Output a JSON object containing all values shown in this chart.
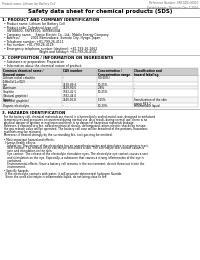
{
  "title": "Safety data sheet for chemical products (SDS)",
  "header_left": "Product name: Lithium Ion Battery Cell",
  "header_right": "Reference Number: SRK-SDS-00010\nEstablishment / Revision: Dec.7.2016",
  "section1_title": "1. PRODUCT AND COMPANY IDENTIFICATION",
  "section1_lines": [
    "  • Product name: Lithium Ion Battery Cell",
    "  • Product code: Cylindrical-type cell",
    "     SNY88800, SNY88500, SNY88500A",
    "  • Company name:    Sanyo Electric Co., Ltd., Mobile Energy Company",
    "  • Address:           2001 Kamizaibara, Sumoto City, Hyogo, Japan",
    "  • Telephone number: +81-799-26-4111",
    "  • Fax number: +81-799-26-4129",
    "  • Emergency telephone number (daytime): +81-799-26-2662",
    "                                     (Night and holiday): +81-799-26-4101"
  ],
  "section2_title": "2. COMPOSITION / INFORMATION ON INGREDIENTS",
  "section2_intro": "  • Substance or preparation: Preparation",
  "section2_sub": "  • Information about the chemical nature of product:",
  "table_headers": [
    "Common chemical name /\nGeneral name",
    "CAS number",
    "Concentration /\nConcentration range",
    "Classification and\nhazard labeling"
  ],
  "table_rows": [
    [
      "Lithium nickel cobaltite\n(LiNixCo(1-x)O2)",
      "-",
      "(30-60%)",
      "-"
    ],
    [
      "Iron",
      "7439-89-6",
      "10-25%",
      "-"
    ],
    [
      "Aluminum",
      "7429-90-5",
      "2-8%",
      "-"
    ],
    [
      "Graphite\n(Natural graphite)\n(Artificial graphite)",
      "7782-42-5\n7782-44-0",
      "10-25%",
      "-"
    ],
    [
      "Copper",
      "7440-50-8",
      "5-15%",
      "Sensitization of the skin\ngroup R43.2"
    ],
    [
      "Organic electrolyte",
      "-",
      "10-20%",
      "Inflammable liquid"
    ]
  ],
  "section3_title": "3. HAZARDS IDENTIFICATION",
  "section3_lines": [
    "  For the battery cell, chemical materials are stored in a hermetically sealed metal case, designed to withstand",
    "  temperatures and pressures encountered during normal use. As a result, during normal use, there is no",
    "  physical danger of ignition or explosion and there is no danger of hazardous materials leakage.",
    "  However, if exposed to a fire, added mechanical shocks, decomposed, arises electric shocks by misuse,",
    "  the gas release valve will be operated. The battery cell case will be breached of the portions, hazardous",
    "  materials may be released.",
    "  Moreover, if heated strongly by the surrounding fire, soot gas may be emitted.",
    "",
    "  • Most important hazard and effects:",
    "    Human health effects:",
    "      Inhalation: The release of the electrolyte has an anaesthesia action and stimulates in respiratory tract.",
    "      Skin contact: The release of the electrolyte stimulates a skin. The electrolyte skin contact causes a",
    "      sore and stimulation on the skin.",
    "      Eye contact: The release of the electrolyte stimulates eyes. The electrolyte eye contact causes a sore",
    "      and stimulation on the eye. Especially, a substance that causes a strong inflammation of the eye is",
    "      contained.",
    "      Environmental effects: Since a battery cell remains in the environment, do not throw out it into the",
    "      environment.",
    "",
    "  • Specific hazards:",
    "    If the electrolyte contacts with water, it will generate detrimental hydrogen fluoride.",
    "    Since the used electrolyte is inflammable liquid, do not bring close to fire."
  ],
  "bg_color": "#ffffff",
  "text_color": "#000000",
  "line_color": "#aaaaaa",
  "table_header_bg": "#cccccc",
  "table_alt_bg": "#f5f5f5"
}
